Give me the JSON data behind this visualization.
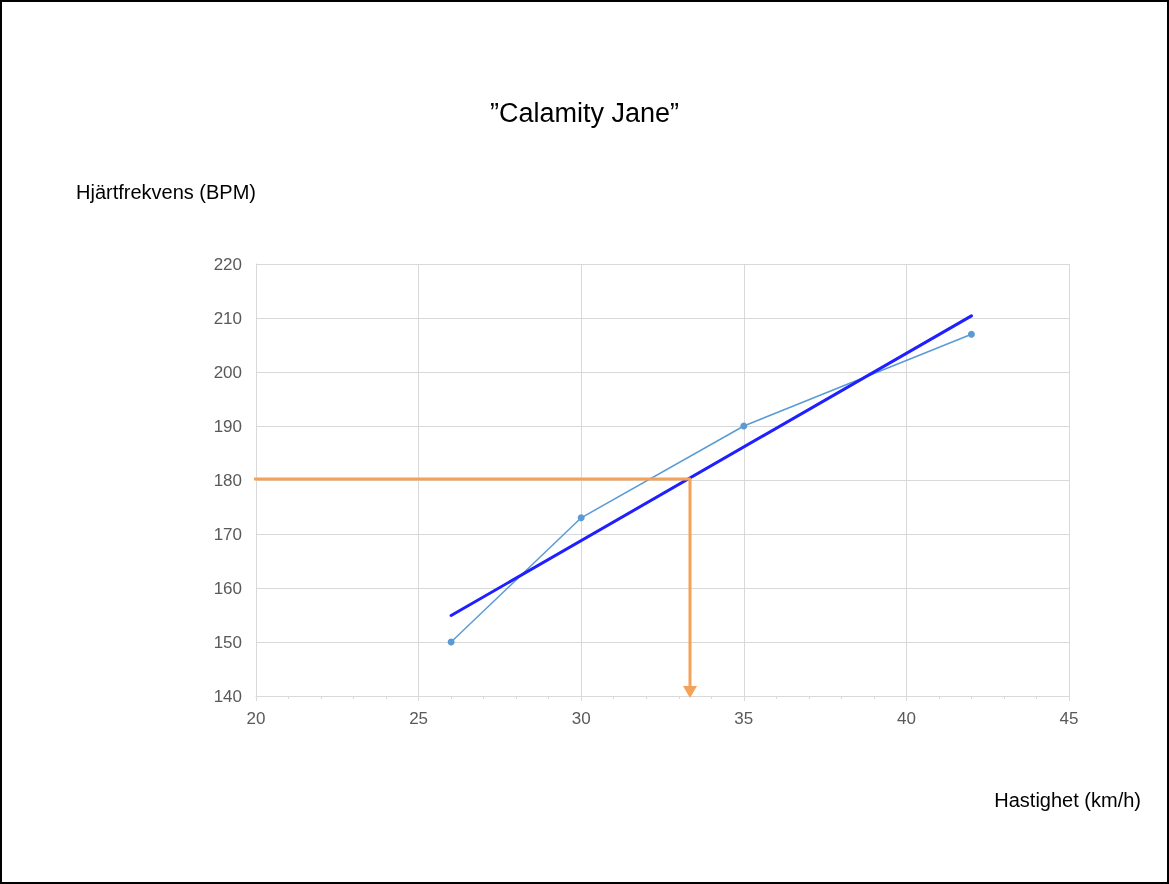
{
  "chart_data": {
    "type": "line",
    "title": "”Calamity Jane”",
    "xlabel": "Hastighet (km/h)",
    "ylabel": "Hjärtfrekvens (BPM)",
    "xlim": [
      20,
      45
    ],
    "xticks": [
      20,
      25,
      30,
      35,
      40,
      45
    ],
    "ylim": [
      140,
      220
    ],
    "yticks": [
      140,
      150,
      160,
      170,
      180,
      190,
      200,
      210,
      220
    ],
    "grid": true,
    "series": [
      {
        "color": "#5b9bd5",
        "x": [
          26,
          30,
          35,
          42
        ],
        "values": [
          150,
          173,
          190,
          207
        ],
        "marker": "circle"
      },
      {
        "color": "#1f1fff",
        "x": [
          26,
          42
        ],
        "values": [
          154.9,
          210.4
        ],
        "marker": "none"
      }
    ]
  }
}
